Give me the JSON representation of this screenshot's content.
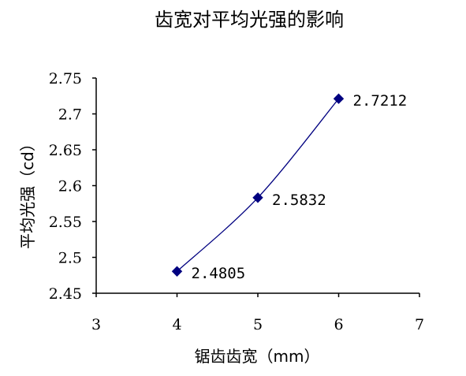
{
  "chart_data": {
    "type": "line",
    "title": "齿宽对平均光强的影响",
    "xlabel": "锯齿齿宽（mm）",
    "ylabel": "平均光强（cd）",
    "xlim": [
      3,
      7
    ],
    "ylim": [
      2.45,
      2.75
    ],
    "xticks": [
      "3",
      "4",
      "5",
      "6",
      "7"
    ],
    "yticks": [
      "2.75",
      "2.7",
      "2.65",
      "2.6",
      "2.55",
      "2.5",
      "2.45"
    ],
    "series": [
      {
        "x": [
          4,
          5,
          6
        ],
        "y": [
          2.4805,
          2.5832,
          2.7212
        ],
        "labels": [
          "2.4805",
          "2.5832",
          "2.7212"
        ],
        "color": "#000080",
        "marker": "diamond",
        "smooth": true
      }
    ],
    "grid": false,
    "legend": "none"
  }
}
